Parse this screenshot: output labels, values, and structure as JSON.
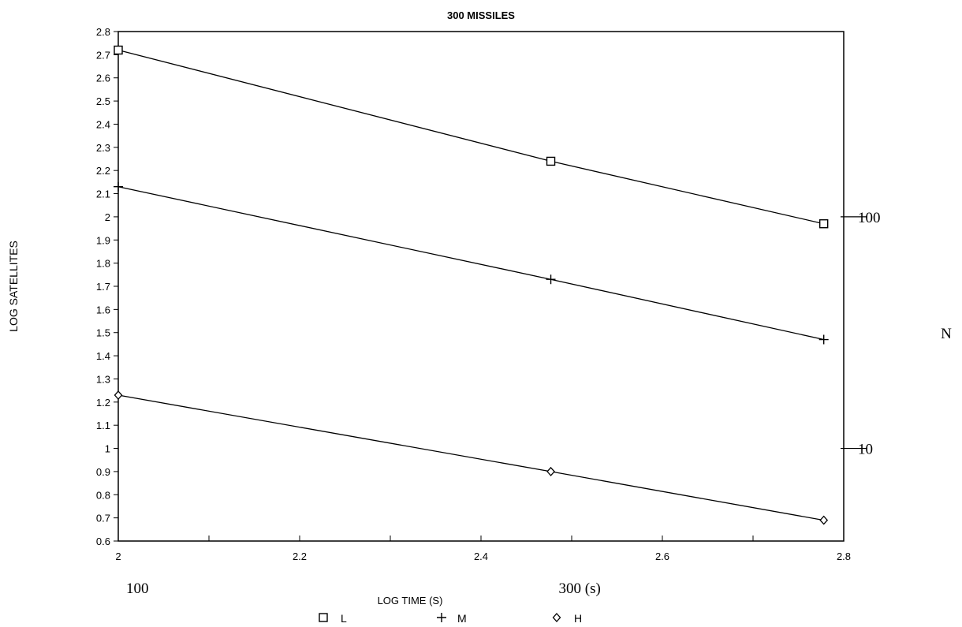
{
  "chart_data": {
    "type": "line",
    "title": "300 MISSILES",
    "xlabel": "LOG TIME (S)",
    "ylabel": "LOG SATELLITES",
    "xlim": [
      2,
      2.8
    ],
    "ylim": [
      0.6,
      2.8
    ],
    "x_ticks": [
      2,
      2.1,
      2.2,
      2.3,
      2.4,
      2.5,
      2.6,
      2.7,
      2.8
    ],
    "x_tick_labels": [
      {
        "value": 2,
        "label": "2"
      },
      {
        "value": 2.2,
        "label": "2.2"
      },
      {
        "value": 2.4,
        "label": "2.4"
      },
      {
        "value": 2.6,
        "label": "2.6"
      },
      {
        "value": 2.8,
        "label": "2.8"
      }
    ],
    "y_ticks": [
      "0.6",
      "0.7",
      "0.8",
      "0.9",
      "1",
      "1.1",
      "1.2",
      "1.3",
      "1.4",
      "1.5",
      "1.6",
      "1.7",
      "1.8",
      "1.9",
      "2",
      "2.1",
      "2.2",
      "2.3",
      "2.4",
      "2.5",
      "2.6",
      "2.7",
      "2.8"
    ],
    "grid": false,
    "legend_position": "bottom",
    "series": [
      {
        "name": "L",
        "marker": "square",
        "x": [
          2,
          2.477,
          2.778
        ],
        "y": [
          2.72,
          2.24,
          1.97
        ]
      },
      {
        "name": "M",
        "marker": "plus",
        "x": [
          2,
          2.477,
          2.778
        ],
        "y": [
          2.13,
          1.73,
          1.47
        ]
      },
      {
        "name": "H",
        "marker": "diamond",
        "x": [
          2,
          2.477,
          2.778
        ],
        "y": [
          1.23,
          0.9,
          0.69
        ]
      }
    ],
    "annotations": {
      "x_secondary": [
        {
          "value": 2,
          "label": "100"
        },
        {
          "value": 2.477,
          "label": "300 (s)"
        }
      ],
      "y_secondary": [
        {
          "value": 2,
          "label": "100"
        },
        {
          "value": 1,
          "label": "10"
        }
      ],
      "y_secondary_axis_label": "N"
    }
  }
}
